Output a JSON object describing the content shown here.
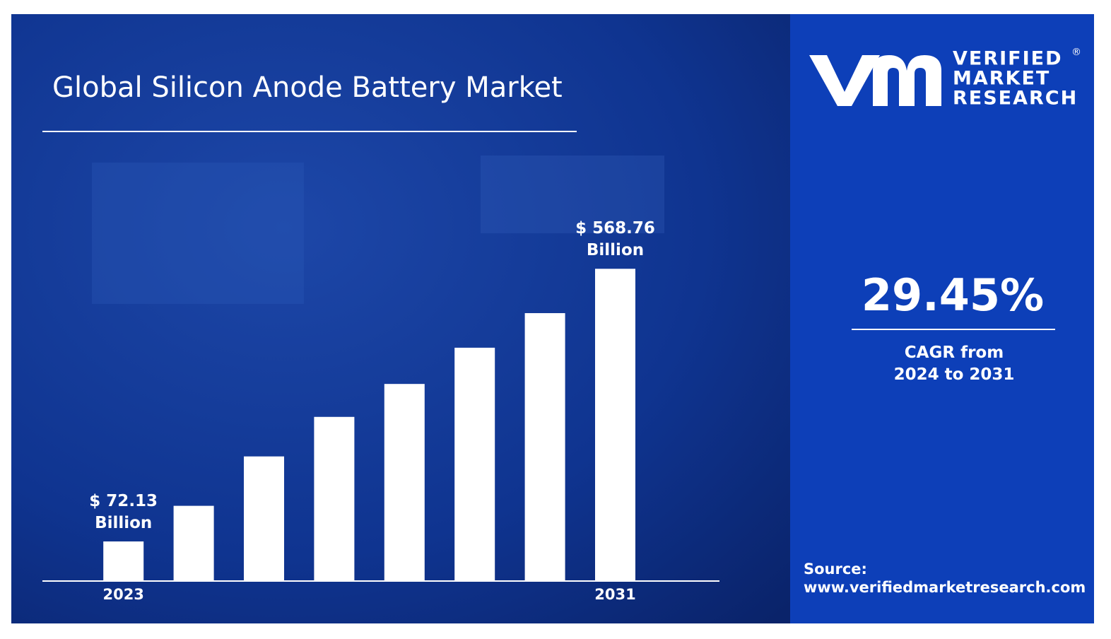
{
  "chart_data": {
    "type": "bar",
    "title": "Global Silicon Anode Battery Market",
    "categories": [
      "2023",
      null,
      null,
      null,
      null,
      null,
      null,
      "2031"
    ],
    "values": [
      72.13,
      137,
      227,
      299,
      359,
      425,
      488,
      568.76
    ],
    "value_labels": [
      "$ 72.13 Billion",
      null,
      null,
      null,
      null,
      null,
      null,
      "$ 568.76 Billion"
    ],
    "color": "#ffffff",
    "ylim": [
      0,
      600
    ]
  },
  "brand": {
    "line1": "VERIFIED",
    "line2": "MARKET",
    "line3": "RESEARCH",
    "mark": "®"
  },
  "cagr": {
    "value": "29.45%",
    "label": "CAGR from 2024 to 2031"
  },
  "source": {
    "label": "Source:",
    "url": "www.verifiedmarketresearch.com"
  }
}
